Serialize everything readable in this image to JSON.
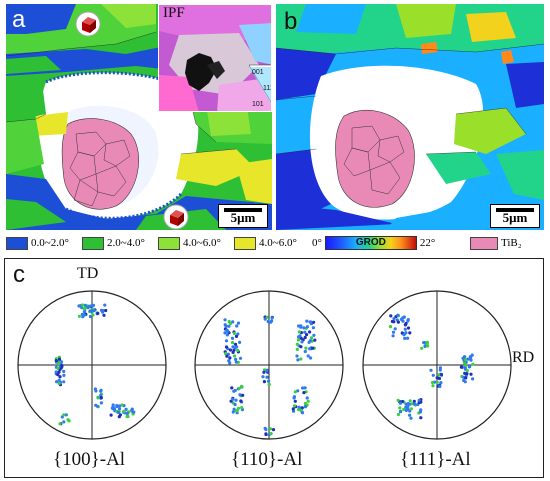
{
  "panel_a": {
    "letter": "a",
    "inset_label": "IPF",
    "ipf_ticks": [
      "001",
      "111",
      "101"
    ],
    "scale_label": "5μm"
  },
  "panel_b": {
    "letter": "b",
    "scale_label": "5μm"
  },
  "legend": {
    "items": [
      {
        "label": "0.0~2.0°",
        "color": "#1d4fd6"
      },
      {
        "label": "2.0~4.0°",
        "color": "#2fbf35"
      },
      {
        "label": "4.0~6.0°",
        "color": "#8de23a"
      },
      {
        "label": "4.0~6.0°",
        "color": "#e8e62a"
      }
    ],
    "grod_min": "0°",
    "grod_label": "GROD",
    "grod_max": "22°",
    "tib2_label": "TiB₂",
    "tib2_color": "#e98ab6"
  },
  "panel_c": {
    "letter": "c",
    "td_label": "TD",
    "rd_label": "RD",
    "pole_figures": [
      {
        "label": "{100}-Al"
      },
      {
        "label": "{110}-Al"
      },
      {
        "label": "{111}-Al"
      }
    ]
  }
}
